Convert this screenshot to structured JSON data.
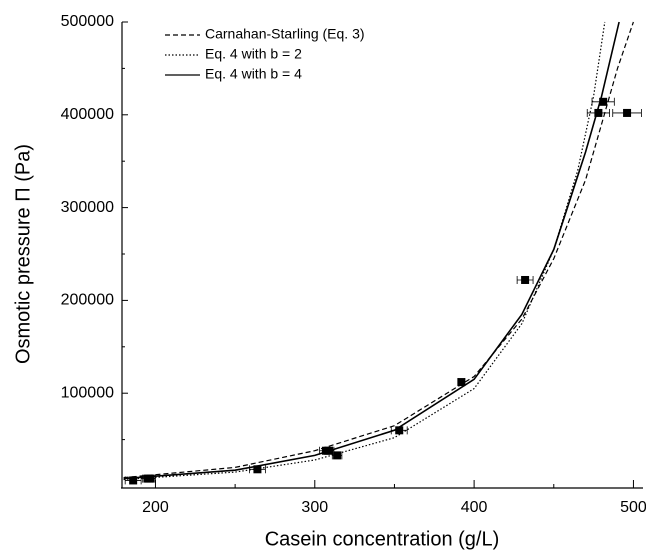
{
  "chart_data": {
    "type": "scatter",
    "xlabel": "Casein concentration (g/L)",
    "ylabel": "Osmotic pressure Π (Pa)",
    "xlim": [
      179,
      506
    ],
    "ylim": [
      0,
      500000
    ],
    "xticks": [
      200,
      300,
      400,
      500
    ],
    "xminorticks": [
      250,
      350,
      450
    ],
    "yticks": [
      100000,
      200000,
      300000,
      400000,
      500000
    ],
    "yminorticks": [
      50000,
      150000,
      250000,
      350000,
      450000
    ],
    "legend": "upper left",
    "series": [
      {
        "name": "Carnahan-Starling (Eq. 3)",
        "kind": "line",
        "style": "dashed",
        "color": "#000000",
        "x": [
          180,
          250,
          300,
          350,
          400,
          430,
          450,
          470,
          480,
          490,
          500
        ],
        "values": [
          9000,
          20000,
          38000,
          65000,
          118000,
          180000,
          245000,
          330000,
          390000,
          450000,
          500000
        ]
      },
      {
        "name": "Eq. 4 with b = 2",
        "kind": "line",
        "style": "dotted",
        "color": "#000000",
        "x": [
          180,
          250,
          300,
          350,
          400,
          430,
          450,
          465,
          475,
          482
        ],
        "values": [
          7000,
          15000,
          28000,
          52000,
          105000,
          175000,
          255000,
          340000,
          420000,
          500000
        ]
      },
      {
        "name": "Eq. 4 with b = 4",
        "kind": "line",
        "style": "solid",
        "color": "#000000",
        "x": [
          180,
          250,
          300,
          350,
          400,
          430,
          450,
          470,
          480,
          491
        ],
        "values": [
          8000,
          17000,
          33000,
          60000,
          115000,
          185000,
          255000,
          360000,
          420000,
          500000
        ]
      },
      {
        "kind": "points",
        "color": "#000000",
        "x": [
          186,
          195,
          197,
          264,
          307,
          309,
          314,
          353,
          392,
          432,
          478,
          481,
          496
        ],
        "values": [
          6000,
          8000,
          8000,
          18000,
          38000,
          38000,
          33000,
          60000,
          112000,
          222000,
          402000,
          414000,
          402000
        ],
        "x_errors": [
          5,
          3,
          3,
          5,
          4,
          3,
          3,
          5,
          2,
          5,
          7,
          7,
          9
        ]
      }
    ]
  }
}
